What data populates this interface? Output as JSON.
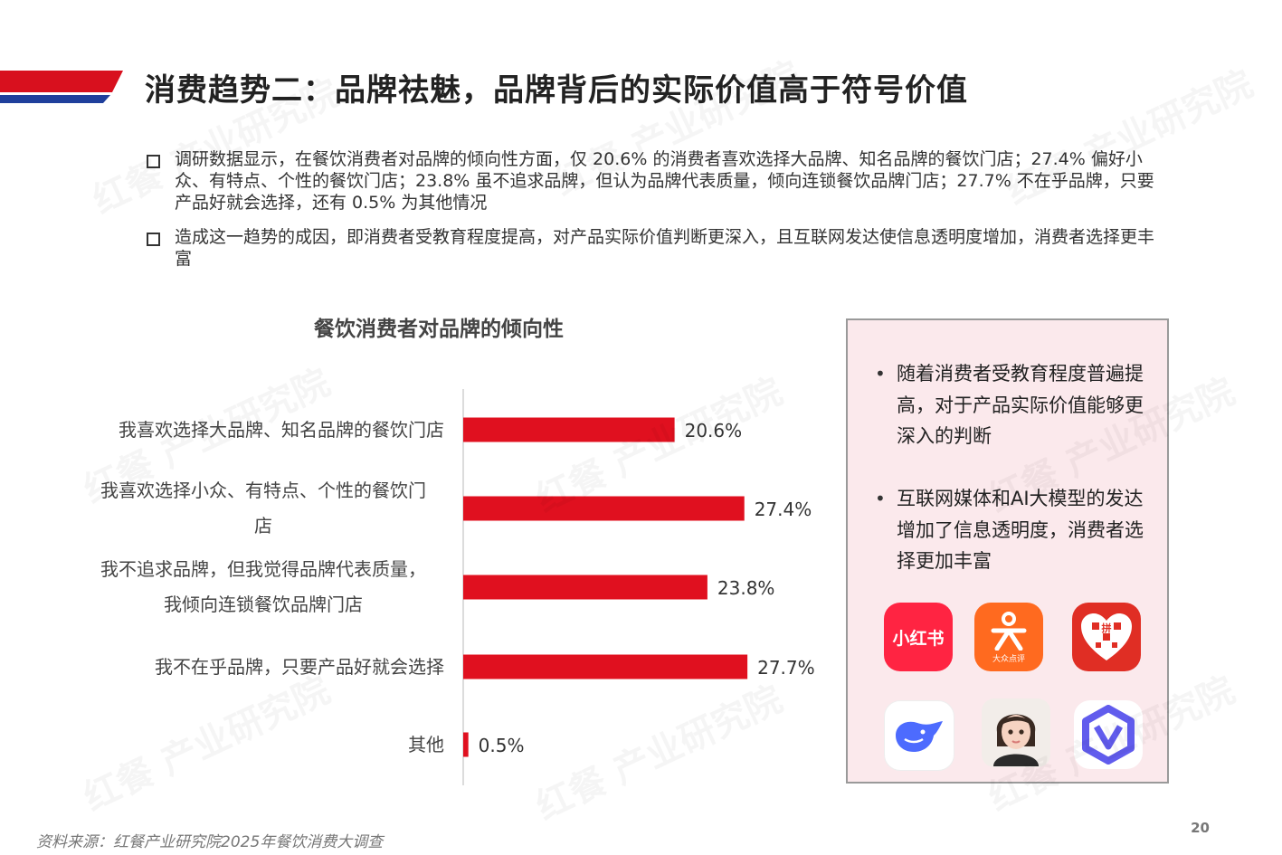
{
  "page": {
    "title": "消费趋势二：品牌祛魅，品牌背后的实际价值高于符号价值",
    "page_number": "20",
    "source": "资料来源：红餐产业研究院2025年餐饮消费大调查"
  },
  "bullets": [
    "调研数据显示，在餐饮消费者对品牌的倾向性方面，仅 20.6% 的消费者喜欢选择大品牌、知名品牌的餐饮门店；27.4% 偏好小众、有特点、个性的餐饮门店；23.8% 虽不追求品牌，但认为品牌代表质量，倾向连锁餐饮品牌门店；27.7% 不在乎品牌，只要产品好就会选择，还有 0.5% 为其他情况",
    "造成这一趋势的成因，即消费者受教育程度提高，对产品实际价值判断更深入，且互联网发达使信息透明度增加，消费者选择更丰富"
  ],
  "panel": {
    "points": [
      "随着消费者受教育程度普遍提高，对于产品实际价值能够更深入的判断",
      "互联网媒体和AI大模型的发达增加了信息透明度，消费者选择更加丰富"
    ],
    "icons": [
      {
        "name": "xiaohongshu-icon",
        "text": "小红书",
        "color": "#ff2442"
      },
      {
        "name": "dianping-icon",
        "text": "大众点评",
        "color": "#ff6a1f"
      },
      {
        "name": "pinduoduo-icon",
        "text": "拼",
        "color": "#e02e24"
      },
      {
        "name": "deepseek-icon",
        "color": "#4d6bfe"
      },
      {
        "name": "ai-avatar-icon",
        "color": "#f3c9b6"
      },
      {
        "name": "qwen-icon",
        "color": "#615ced"
      }
    ]
  },
  "watermark": "红餐 产业研究院",
  "chart_data": {
    "type": "bar",
    "orientation": "horizontal",
    "title": "餐饮消费者对品牌的倾向性",
    "categories": [
      "我喜欢选择大品牌、知名品牌的餐饮门店",
      "我喜欢选择小众、有特点、个性的餐饮门店",
      "我不追求品牌，但我觉得品牌代表质量，我倾向连锁餐饮品牌门店",
      "我不在乎品牌，只要产品好就会选择",
      "其他"
    ],
    "category_lines": [
      [
        "我喜欢选择大品牌、知名品牌的餐饮门店"
      ],
      [
        "我喜欢选择小众、有特点、个性的餐饮门",
        "店"
      ],
      [
        "我不追求品牌，但我觉得品牌代表质量，",
        "我倾向连锁餐饮品牌门店"
      ],
      [
        "我不在乎品牌，只要产品好就会选择"
      ],
      [
        "其他"
      ]
    ],
    "values": [
      20.6,
      27.4,
      23.8,
      27.7,
      0.5
    ],
    "value_labels": [
      "20.6%",
      "27.4%",
      "23.8%",
      "27.7%",
      "0.5%"
    ],
    "bar_color": "#e0101f",
    "grid": false
  }
}
